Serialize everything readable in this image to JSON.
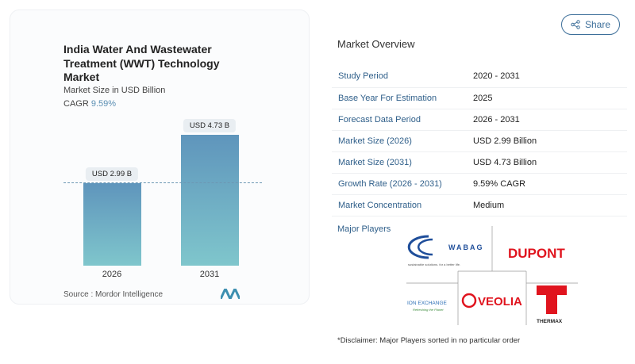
{
  "chart_card": {
    "title": "India Water And Wastewater Treatment (WWT) Technology Market",
    "subtitle": "Market Size in USD Billion",
    "cagr_label": "CAGR",
    "cagr_value": "9.59%",
    "source": "Source :  Mordor Intelligence"
  },
  "chart_data": {
    "type": "bar",
    "categories": [
      "2026",
      "2031"
    ],
    "values": [
      2.99,
      4.73
    ],
    "data_labels": [
      "USD 2.99 B",
      "USD 4.73 B"
    ],
    "ylabel": "Market Size in USD Billion",
    "colors": [
      "#5f95bc",
      "#7fc6cc"
    ]
  },
  "share": {
    "label": "Share",
    "icon": "share-icon"
  },
  "overview": {
    "title": "Market Overview",
    "rows": [
      {
        "label": "Study Period",
        "value": "2020 - 2031"
      },
      {
        "label": "Base Year For Estimation",
        "value": "2025"
      },
      {
        "label": "Forecast Data Period",
        "value": "2026 - 2031"
      },
      {
        "label": "Market Size (2026)",
        "value": "USD 2.99 Billion"
      },
      {
        "label": "Market Size (2031)",
        "value": "USD 4.73 Billion"
      },
      {
        "label": "Growth Rate (2026 - 2031)",
        "value": "9.59% CAGR"
      },
      {
        "label": "Market Concentration",
        "value": "Medium"
      }
    ]
  },
  "players": {
    "title": "Major Players",
    "logos": {
      "wabag": "WABAG",
      "wabag_tag": "sustainable solutions. for a better life.",
      "dupont": "DUPONT",
      "ion": "ION EXCHANGE",
      "ion_tag": "Refreshing the Planet",
      "veolia": "VEOLIA",
      "thermax": "THERMAX"
    }
  },
  "disclaimer": "*Disclaimer: Major Players sorted in no particular order"
}
